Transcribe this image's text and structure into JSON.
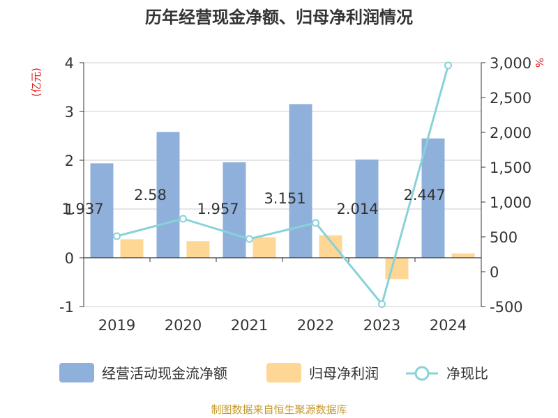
{
  "colors": {
    "bar_primary": "#8fb0db",
    "bar_secondary": "#ffd794",
    "line": "#88d2d8",
    "grid": "#cccccc",
    "axis": "#333333",
    "title": "#333333",
    "unit_label": "#e01b1b",
    "footer": "#c49a2d",
    "text": "#333333"
  },
  "chart_data": {
    "type": "bar",
    "title": "历年经营现金净额、归母净利润情况",
    "categories": [
      "2019",
      "2020",
      "2021",
      "2022",
      "2023",
      "2024"
    ],
    "series": [
      {
        "name": "经营活动现金流净额",
        "type": "bar",
        "axis": "left",
        "values": [
          1.937,
          2.58,
          1.957,
          3.151,
          2.014,
          2.447
        ]
      },
      {
        "name": "归母净利润",
        "type": "bar",
        "axis": "left",
        "values": [
          0.38,
          0.34,
          0.42,
          0.46,
          -0.44,
          0.09
        ]
      },
      {
        "name": "净现比",
        "type": "line",
        "axis": "right",
        "values": [
          510,
          760,
          470,
          700,
          -465,
          2960
        ]
      }
    ],
    "data_labels": [
      "1.937",
      "2.58",
      "1.957",
      "3.151",
      "2.014",
      "2.447"
    ],
    "y_left": {
      "unit": "(亿元)",
      "min": -1,
      "max": 4,
      "ticks": [
        "-1",
        "0",
        "1",
        "2",
        "3",
        "4"
      ]
    },
    "y_right": {
      "unit": "%",
      "min": -500,
      "max": 3000,
      "ticks": [
        "-500",
        "0",
        "500",
        "1,000",
        "1,500",
        "2,000",
        "2,500",
        "3,000"
      ]
    },
    "grid": true,
    "legend_position": "bottom"
  },
  "footer": {
    "source": "制图数据来自恒生聚源数据库"
  }
}
